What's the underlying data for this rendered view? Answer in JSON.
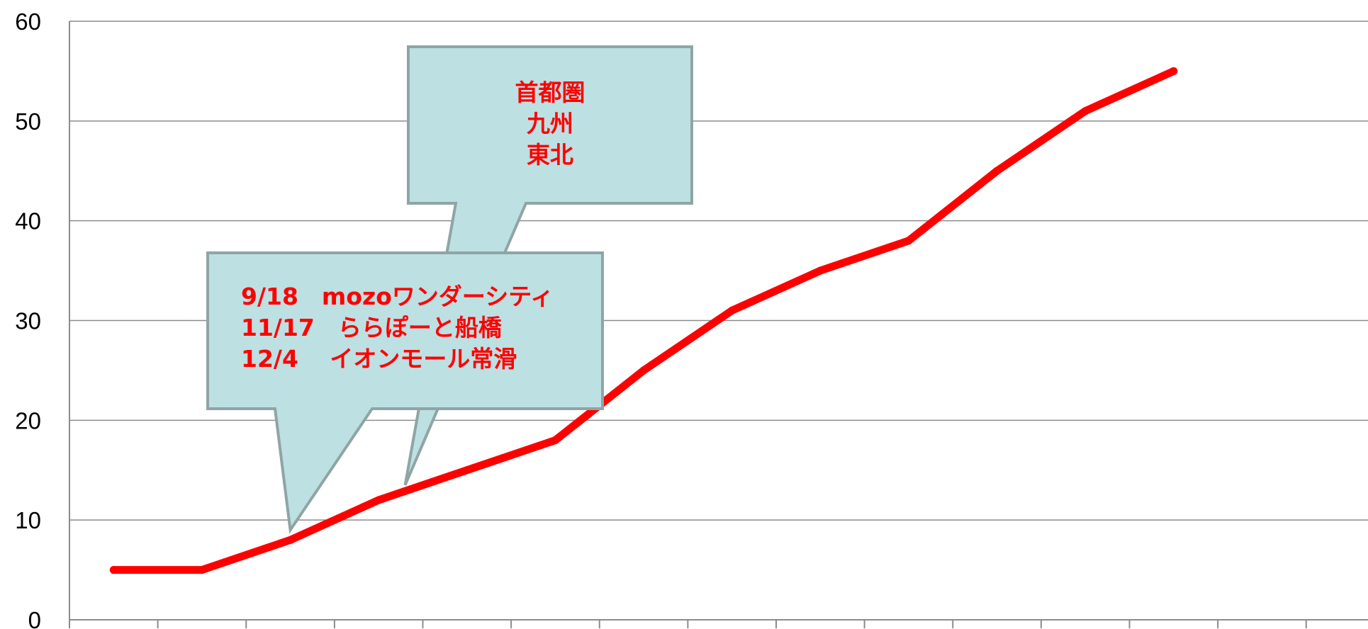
{
  "chart_data": {
    "type": "line",
    "title": "",
    "xlabel": "",
    "ylabel": "",
    "ylim": [
      0,
      60
    ],
    "yticks": [
      "0",
      "10",
      "20",
      "30",
      "40",
      "50",
      "60"
    ],
    "grid": true,
    "x": [
      1,
      2,
      3,
      4,
      5,
      6,
      7,
      8,
      9,
      10,
      11,
      12,
      13
    ],
    "series": [
      {
        "values": [
          5,
          5,
          8,
          12,
          15,
          18,
          25,
          31,
          35,
          38,
          45,
          51,
          55
        ],
        "color": "#ff0000"
      }
    ],
    "annotations": [
      {
        "lines": [
          "首都圏",
          "九州",
          "東北"
        ],
        "align": "center",
        "pointer_x": 4.3,
        "pointer_y": 13.5
      },
      {
        "lines": [
          "9/18　mozoワンダーシティ",
          "11/17　ららぽーと船橋",
          "12/4 　イオンモール常滑"
        ],
        "align": "left",
        "pointer_x": 3.0,
        "pointer_y": 9.0
      }
    ],
    "colors": {
      "line": "#ff0000",
      "callout_fill": "#bde0e3",
      "callout_border": "#8fa5a5",
      "gridline": "#8c8c8c",
      "annotation_text": "#ff0000"
    }
  }
}
